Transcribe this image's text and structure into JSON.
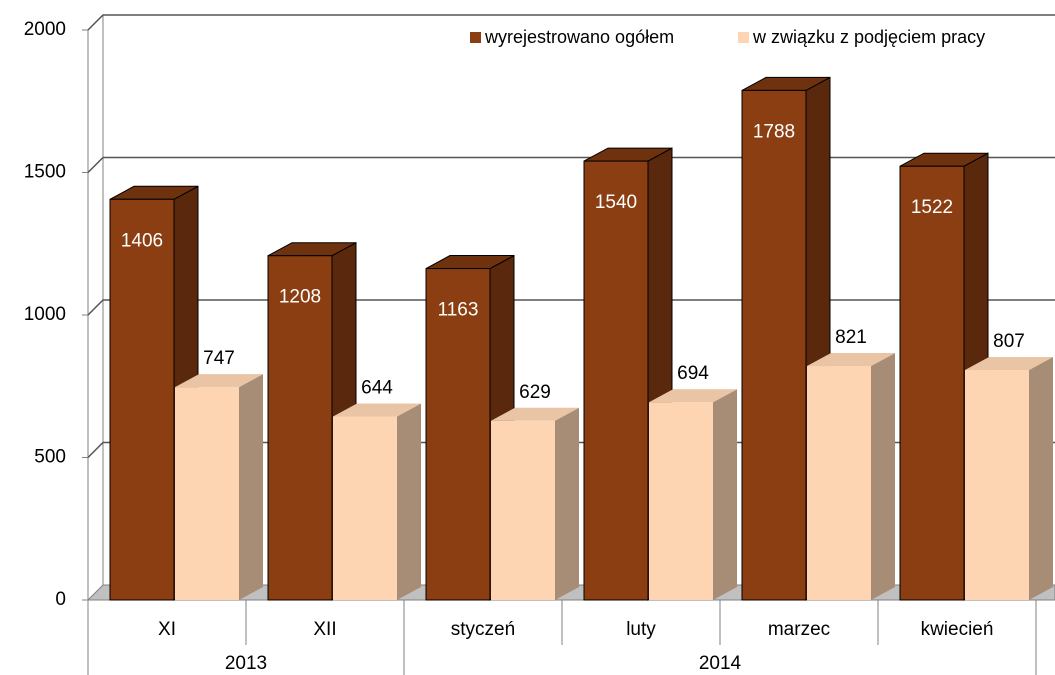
{
  "chart_data": {
    "type": "bar3d",
    "categories": [
      "XI",
      "XII",
      "styczeń",
      "luty",
      "marzec",
      "kwiecień"
    ],
    "groups": [
      {
        "label": "2013",
        "count": 2
      },
      {
        "label": "2014",
        "count": 4
      }
    ],
    "series": [
      {
        "name": "wyrejestrowano ogółem",
        "color": "#8b3e12",
        "values": [
          1406,
          1208,
          1163,
          1540,
          1788,
          1522
        ]
      },
      {
        "name": "w związku z podjęciem pracy",
        "color": "#fdd5b3",
        "values": [
          747,
          644,
          629,
          694,
          821,
          807
        ]
      }
    ],
    "ylim": [
      0,
      2000
    ],
    "yticks": [
      0,
      500,
      1000,
      1500,
      2000
    ],
    "grid": true,
    "legend": "top-right"
  }
}
